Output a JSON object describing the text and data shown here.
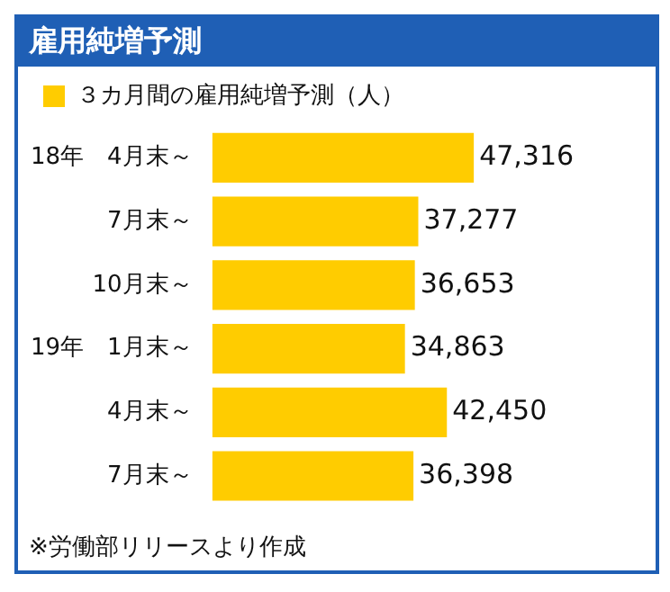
{
  "chart_data": {
    "type": "bar",
    "orientation": "horizontal",
    "title": "雇用純増予測",
    "categories": [
      "18年　4月末～",
      "7月末～",
      "10月末～",
      "19年　1月末～",
      "4月末～",
      "7月末～"
    ],
    "series": [
      {
        "name": "３カ月間の雇用純増予測（人）",
        "color": "#ffcc00",
        "values": [
          47316,
          37277,
          36653,
          34863,
          42450,
          36398
        ],
        "value_labels": [
          "47,316",
          "37,277",
          "36,653",
          "34,863",
          "42,450",
          "36,398"
        ]
      }
    ],
    "legend": "top left",
    "grid": false,
    "annotations": [
      "※労働部リリースより作成"
    ]
  }
}
